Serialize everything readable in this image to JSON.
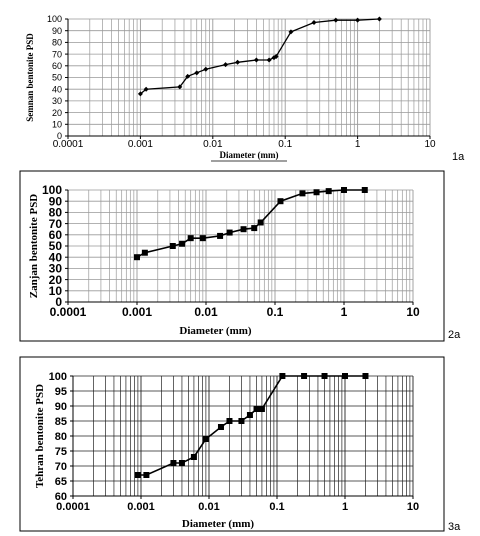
{
  "panel_labels": [
    "1a",
    "2a",
    "3a"
  ],
  "chart_data": [
    {
      "type": "line",
      "x_scale": "log",
      "xlim": [
        0.0001,
        10
      ],
      "ylim": [
        0,
        100
      ],
      "xticks": [
        "0.0001",
        "0.001",
        "0.01",
        "0.1",
        "1",
        "10"
      ],
      "yticks": [
        "0",
        "10",
        "20",
        "30",
        "40",
        "50",
        "60",
        "70",
        "80",
        "90",
        "100"
      ],
      "xlabel": "Diameter  (mm)",
      "ylabel": "Semnan bentonite PSD",
      "grid": true,
      "marker": "diamond",
      "series": [
        {
          "x": [
            0.001,
            0.0012,
            0.0035,
            0.0045,
            0.006,
            0.008,
            0.015,
            0.022,
            0.04,
            0.06,
            0.07,
            0.075,
            0.12,
            0.25,
            0.5,
            1,
            2
          ],
          "y": [
            36,
            40,
            42,
            51,
            54,
            57,
            61,
            63,
            65,
            65,
            67,
            68,
            89,
            97,
            99,
            99,
            100
          ]
        }
      ]
    },
    {
      "type": "line",
      "x_scale": "log",
      "xlim": [
        0.0001,
        10
      ],
      "ylim": [
        0,
        100
      ],
      "xticks": [
        "0.0001",
        "0.001",
        "0.01",
        "0.1",
        "1",
        "10"
      ],
      "yticks": [
        "0",
        "10",
        "20",
        "30",
        "40",
        "50",
        "60",
        "70",
        "80",
        "90",
        "100"
      ],
      "xlabel": "Diameter  (mm)",
      "ylabel": "Zanjan bentonite PSD",
      "grid": true,
      "marker": "square",
      "series": [
        {
          "x": [
            0.001,
            0.0013,
            0.0033,
            0.0045,
            0.006,
            0.009,
            0.016,
            0.022,
            0.035,
            0.05,
            0.062,
            0.12,
            0.25,
            0.4,
            0.6,
            1,
            2
          ],
          "y": [
            40,
            44,
            50,
            52,
            57,
            57,
            59,
            62,
            65,
            66,
            71,
            90,
            97,
            98,
            99,
            100,
            100
          ]
        }
      ]
    },
    {
      "type": "line",
      "x_scale": "log",
      "xlim": [
        0.0001,
        10
      ],
      "ylim": [
        60,
        100
      ],
      "xticks": [
        "0.0001",
        "0.001",
        "0.01",
        "0.1",
        "1",
        "10"
      ],
      "yticks": [
        "60",
        "65",
        "70",
        "75",
        "80",
        "85",
        "90",
        "95",
        "100"
      ],
      "xlabel": "Diameter  (mm)",
      "ylabel": "Tehran bentonite PSD",
      "grid": true,
      "marker": "square",
      "series": [
        {
          "x": [
            0.0009,
            0.0012,
            0.003,
            0.004,
            0.006,
            0.009,
            0.015,
            0.02,
            0.03,
            0.04,
            0.05,
            0.06,
            0.12,
            0.25,
            0.5,
            1,
            2
          ],
          "y": [
            67,
            67,
            71,
            71,
            73,
            79,
            83,
            85,
            85,
            87,
            89,
            89,
            100,
            100,
            100,
            100,
            100
          ]
        }
      ]
    }
  ]
}
